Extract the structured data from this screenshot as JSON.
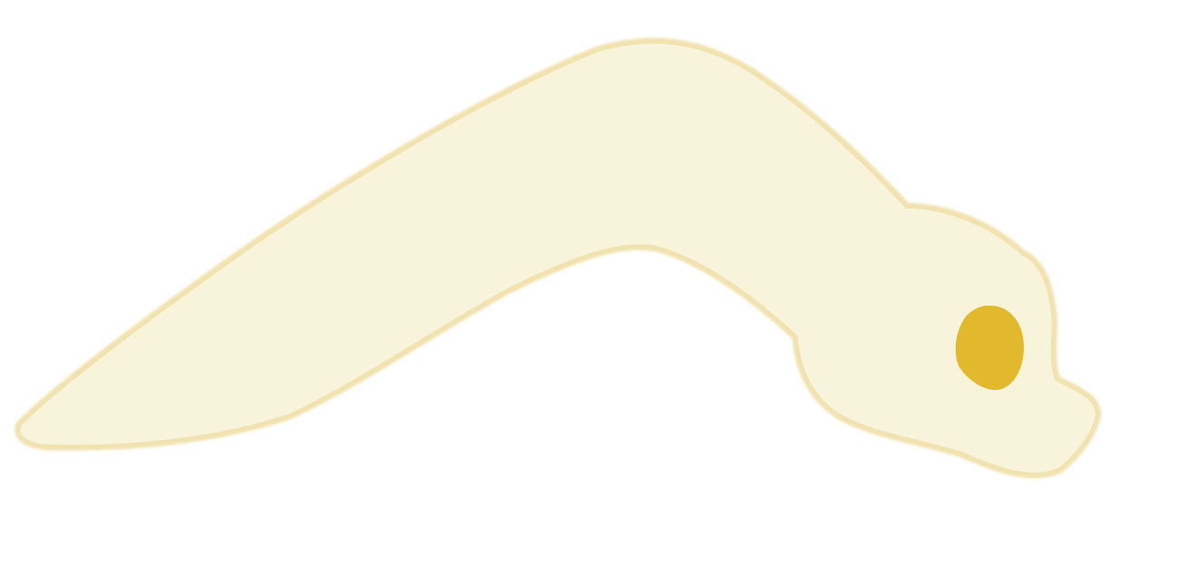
{
  "canvas": {
    "background": "#ffffff"
  },
  "shape": {
    "semantic": "elongated-blob-creature",
    "fill": "#f8f4dc",
    "outline": "#f1e3b0"
  },
  "spot": {
    "semantic": "eye-spot",
    "fill": "#e2b92d"
  }
}
